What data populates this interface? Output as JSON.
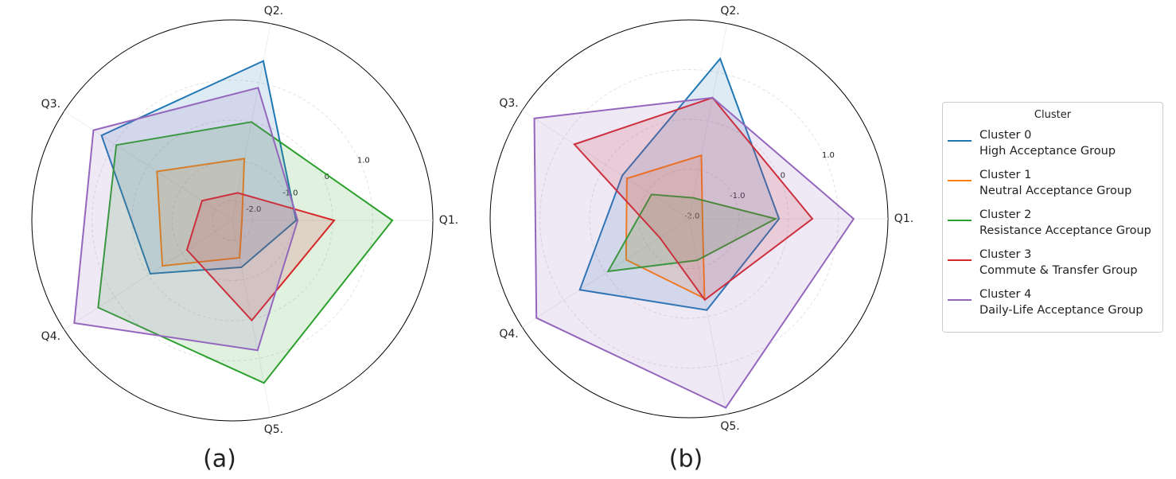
{
  "chart_data": [
    {
      "type": "radar",
      "title": "(a)",
      "categories": [
        "Q1.",
        "Q2.",
        "Q3.",
        "Q4.",
        "Q5."
      ],
      "ylim": [
        -2.5,
        2.5
      ],
      "yticks": [
        {
          "value": -2,
          "label": "-2.0"
        },
        {
          "value": -1,
          "label": "-1.0"
        },
        0,
        {
          "value": 1,
          "label": "1.0"
        }
      ],
      "grid": true,
      "legend_title": "Cluster",
      "series": [
        {
          "name": "Cluster 0\nHigh Acceptance Group",
          "color": "#1f77b4",
          "values": [
            -0.91,
            1.55,
            1.39,
            -0.06,
            -1.31
          ]
        },
        {
          "name": "Cluster 1\nNeutral Acceptance Group",
          "color": "#ff7f0e",
          "values": [
            -2.26,
            -0.93,
            -0.26,
            -0.42,
            -1.55
          ]
        },
        {
          "name": "Cluster 2\nResistance Acceptance Group",
          "color": "#2ca02c",
          "values": [
            1.49,
            0.0,
            0.95,
            1.49,
            1.63
          ]
        },
        {
          "name": "Cluster 3\nCommute & Transfer Group",
          "color": "#d62728",
          "values": [
            0.04,
            -1.8,
            -1.6,
            -1.15,
            0.04
          ]
        },
        {
          "name": "Cluster 4\nDaily-Life Acceptance Group",
          "color": "#9467bd",
          "values": [
            -0.87,
            0.87,
            1.63,
            2.2,
            0.8
          ]
        }
      ]
    },
    {
      "type": "radar",
      "title": "(b)",
      "categories": [
        "Q1.",
        "Q2.",
        "Q3.",
        "Q4.",
        "Q5."
      ],
      "ylim": [
        -2,
        2
      ],
      "yticks": [
        {
          "value": -2,
          "label": "-2.0"
        },
        {
          "value": -1,
          "label": "-1.0"
        },
        0,
        {
          "value": 1,
          "label": "1.0"
        }
      ],
      "grid": true,
      "series": [
        {
          "color": "#1f77b4",
          "values": [
            -0.19,
            1.28,
            -0.4,
            0.62,
            -0.13
          ]
        },
        {
          "color": "#ff7f0e",
          "values": [
            -1.73,
            -0.7,
            -0.51,
            -0.49,
            -0.37
          ]
        },
        {
          "color": "#2ca02c",
          "values": [
            -0.26,
            -1.57,
            -1.1,
            -0.06,
            -1.15
          ]
        },
        {
          "color": "#d62728",
          "values": [
            0.48,
            0.48,
            0.75,
            -1.3,
            -0.34
          ]
        },
        {
          "color": "#9467bd",
          "values": [
            1.31,
            0.48,
            1.71,
            1.66,
            1.87
          ]
        }
      ]
    }
  ]
}
